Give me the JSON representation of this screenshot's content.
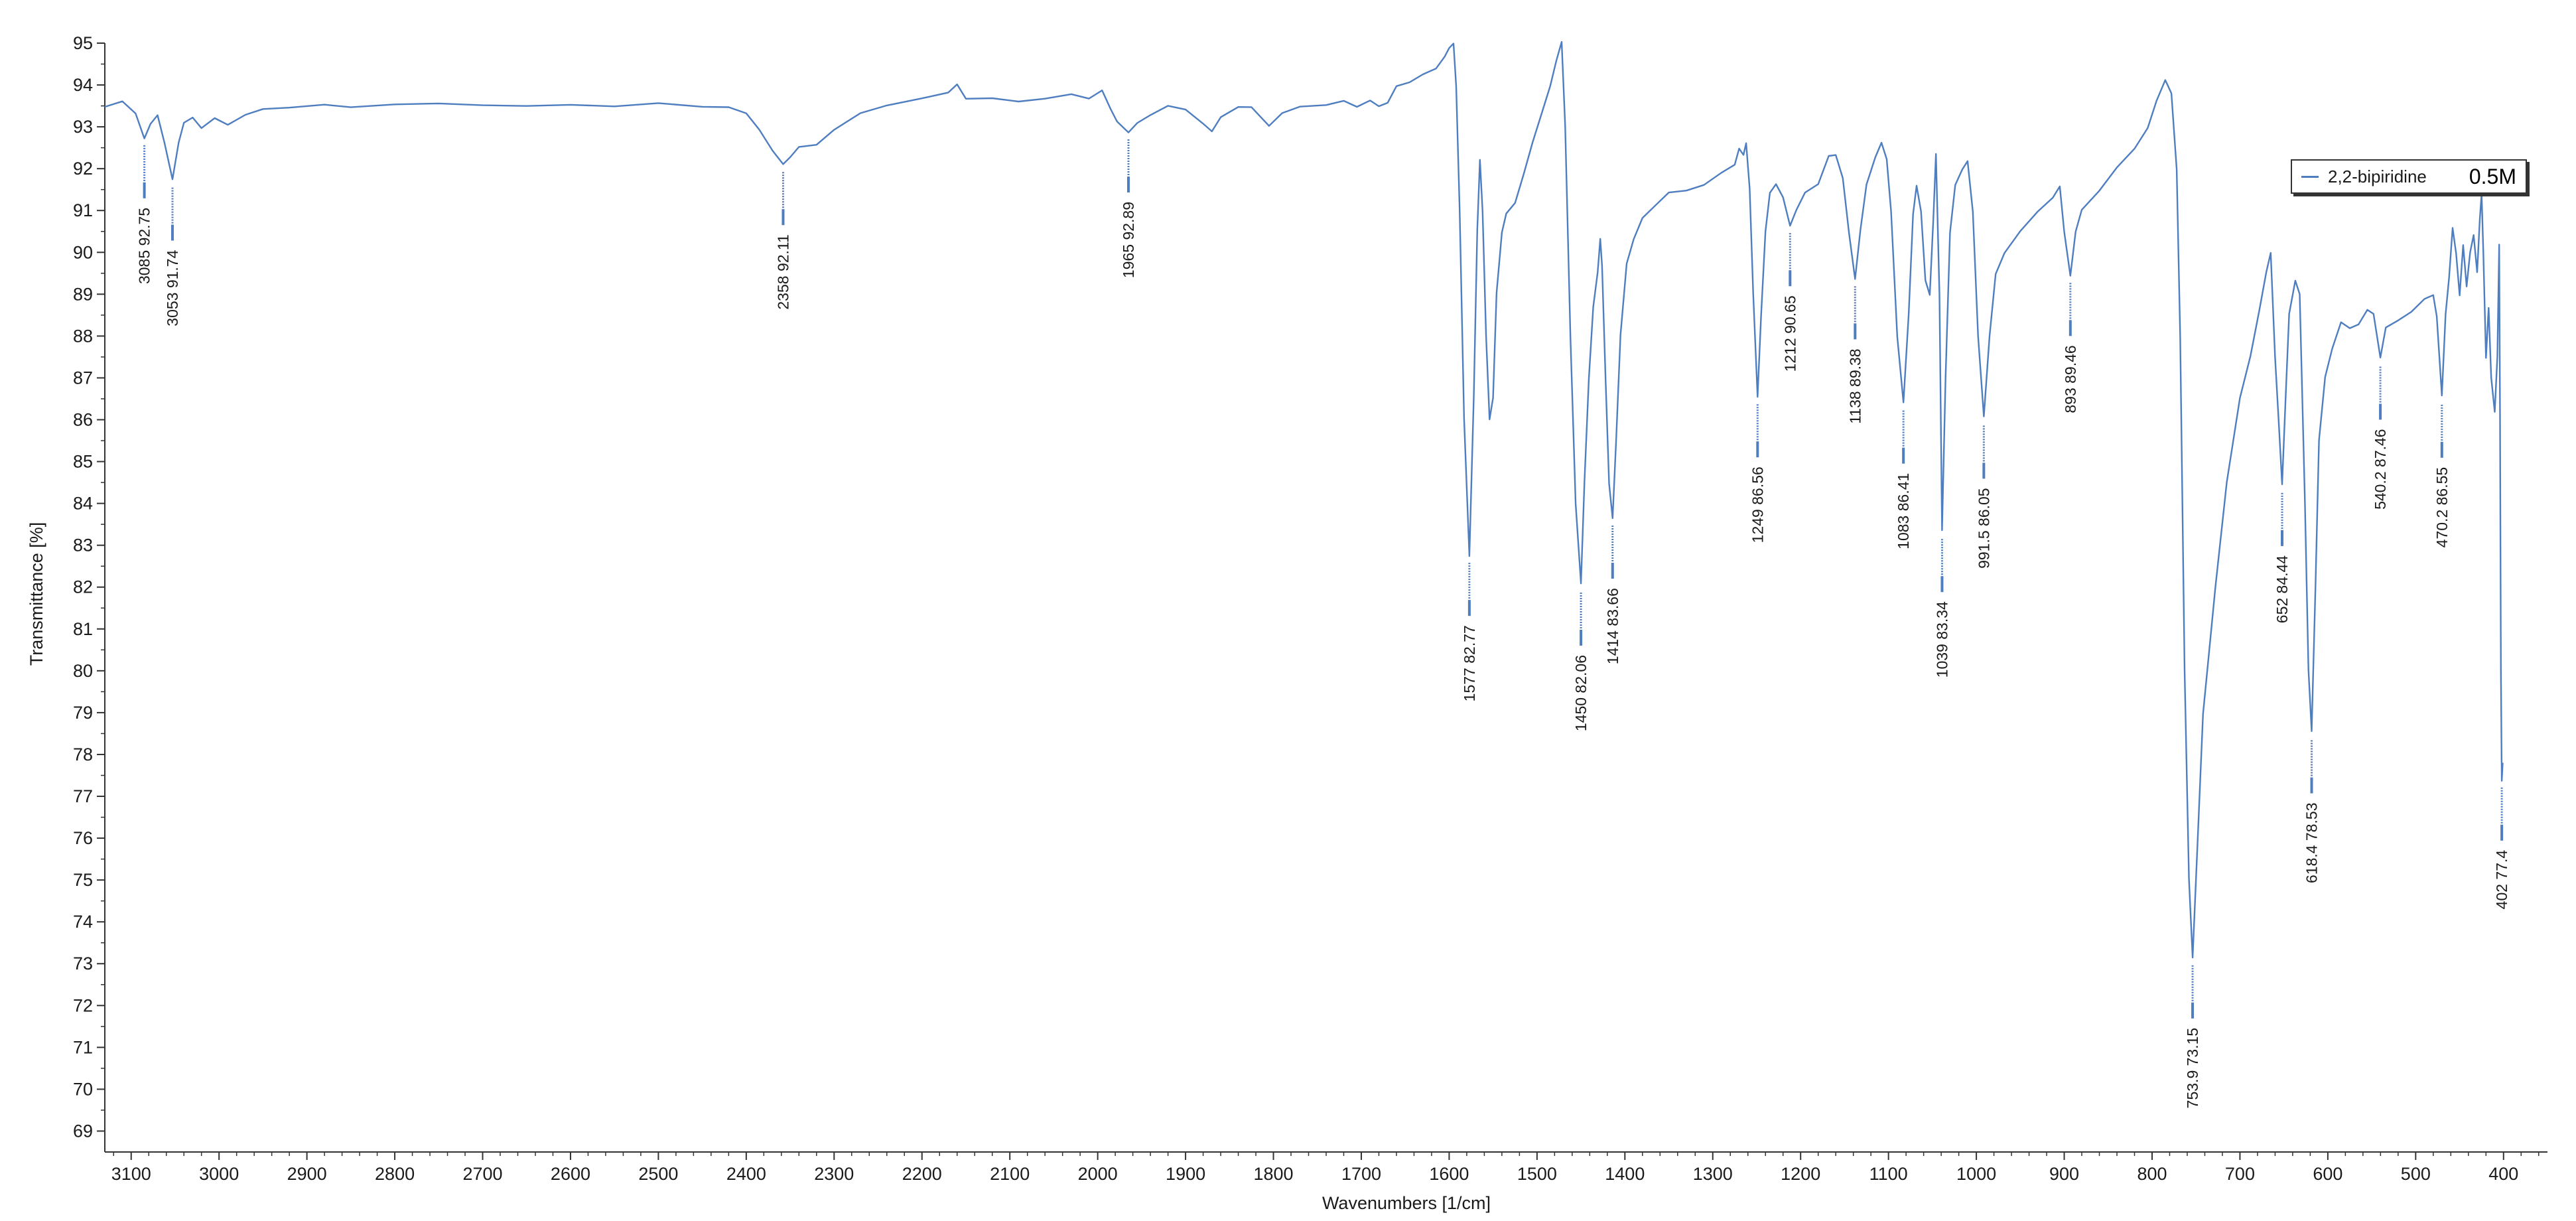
{
  "chart_data": {
    "type": "line",
    "title": "",
    "xlabel": "Wavenumbers [1/cm]",
    "ylabel": "Transmittance [%]",
    "xlim": [
      3130,
      350
    ],
    "ylim": [
      68.5,
      95
    ],
    "x_ticks": [
      "3100",
      "3000",
      "2900",
      "2800",
      "2700",
      "2600",
      "2500",
      "2400",
      "2300",
      "2200",
      "2100",
      "2000",
      "1900",
      "1800",
      "1700",
      "1600",
      "1500",
      "1400",
      "1300",
      "1200",
      "1100",
      "1000",
      "900",
      "800",
      "700",
      "600",
      "500",
      "400"
    ],
    "y_ticks": [
      "95",
      "94",
      "93",
      "92",
      "91",
      "90",
      "89",
      "88",
      "87",
      "86",
      "85",
      "84",
      "83",
      "82",
      "81",
      "80",
      "79",
      "78",
      "77",
      "76",
      "75",
      "74",
      "73",
      "72",
      "71",
      "70",
      "69"
    ],
    "grid": false,
    "legend_position": "top-right",
    "series": [
      {
        "name": "2,2-bipiridine",
        "color": "#4f7ec0",
        "points": [
          [
            3130,
            93.5
          ],
          [
            3110,
            93.6
          ],
          [
            3095,
            93.3
          ],
          [
            3085,
            92.75
          ],
          [
            3078,
            93.1
          ],
          [
            3070,
            93.3
          ],
          [
            3062,
            92.6
          ],
          [
            3053,
            91.74
          ],
          [
            3046,
            92.6
          ],
          [
            3040,
            93.1
          ],
          [
            3030,
            93.25
          ],
          [
            3020,
            92.95
          ],
          [
            3005,
            93.2
          ],
          [
            2990,
            93.05
          ],
          [
            2970,
            93.3
          ],
          [
            2950,
            93.4
          ],
          [
            2920,
            93.45
          ],
          [
            2880,
            93.5
          ],
          [
            2850,
            93.45
          ],
          [
            2800,
            93.55
          ],
          [
            2750,
            93.55
          ],
          [
            2700,
            93.52
          ],
          [
            2650,
            93.5
          ],
          [
            2600,
            93.52
          ],
          [
            2550,
            93.5
          ],
          [
            2500,
            93.55
          ],
          [
            2450,
            93.5
          ],
          [
            2420,
            93.5
          ],
          [
            2400,
            93.3
          ],
          [
            2385,
            92.9
          ],
          [
            2370,
            92.4
          ],
          [
            2358,
            92.11
          ],
          [
            2350,
            92.3
          ],
          [
            2340,
            92.5
          ],
          [
            2320,
            92.6
          ],
          [
            2300,
            92.9
          ],
          [
            2270,
            93.3
          ],
          [
            2240,
            93.5
          ],
          [
            2200,
            93.65
          ],
          [
            2170,
            93.8
          ],
          [
            2160,
            94.0
          ],
          [
            2150,
            93.7
          ],
          [
            2120,
            93.7
          ],
          [
            2090,
            93.6
          ],
          [
            2060,
            93.65
          ],
          [
            2030,
            93.75
          ],
          [
            2010,
            93.7
          ],
          [
            1995,
            93.9
          ],
          [
            1985,
            93.4
          ],
          [
            1978,
            93.1
          ],
          [
            1965,
            92.89
          ],
          [
            1955,
            93.1
          ],
          [
            1940,
            93.3
          ],
          [
            1920,
            93.5
          ],
          [
            1900,
            93.4
          ],
          [
            1880,
            93.1
          ],
          [
            1870,
            92.9
          ],
          [
            1860,
            93.2
          ],
          [
            1840,
            93.5
          ],
          [
            1825,
            93.5
          ],
          [
            1805,
            93.0
          ],
          [
            1790,
            93.3
          ],
          [
            1770,
            93.5
          ],
          [
            1740,
            93.55
          ],
          [
            1720,
            93.6
          ],
          [
            1705,
            93.45
          ],
          [
            1690,
            93.6
          ],
          [
            1680,
            93.5
          ],
          [
            1670,
            93.6
          ],
          [
            1660,
            93.95
          ],
          [
            1645,
            94.05
          ],
          [
            1630,
            94.25
          ],
          [
            1615,
            94.4
          ],
          [
            1605,
            94.65
          ],
          [
            1600,
            94.9
          ],
          [
            1595,
            95.0
          ],
          [
            1592,
            94.0
          ],
          [
            1588,
            91.0
          ],
          [
            1583,
            86.0
          ],
          [
            1577,
            82.77
          ],
          [
            1572,
            86.5
          ],
          [
            1568,
            90.5
          ],
          [
            1565,
            92.2
          ],
          [
            1562,
            91.0
          ],
          [
            1558,
            88.0
          ],
          [
            1554,
            86.0
          ],
          [
            1550,
            86.5
          ],
          [
            1546,
            89.0
          ],
          [
            1540,
            90.5
          ],
          [
            1535,
            90.9
          ],
          [
            1525,
            91.2
          ],
          [
            1515,
            91.9
          ],
          [
            1505,
            92.6
          ],
          [
            1495,
            93.3
          ],
          [
            1485,
            94.0
          ],
          [
            1478,
            94.6
          ],
          [
            1472,
            95.0
          ],
          [
            1468,
            93.0
          ],
          [
            1462,
            88.0
          ],
          [
            1456,
            84.0
          ],
          [
            1450,
            82.06
          ],
          [
            1446,
            84.5
          ],
          [
            1441,
            87.0
          ],
          [
            1436,
            88.7
          ],
          [
            1431,
            89.5
          ],
          [
            1428,
            90.3
          ],
          [
            1426,
            89.7
          ],
          [
            1422,
            87.0
          ],
          [
            1418,
            84.5
          ],
          [
            1414,
            83.66
          ],
          [
            1410,
            85.5
          ],
          [
            1405,
            88.0
          ],
          [
            1398,
            89.7
          ],
          [
            1390,
            90.3
          ],
          [
            1380,
            90.8
          ],
          [
            1365,
            91.1
          ],
          [
            1350,
            91.4
          ],
          [
            1330,
            91.5
          ],
          [
            1310,
            91.6
          ],
          [
            1290,
            91.9
          ],
          [
            1275,
            92.1
          ],
          [
            1270,
            92.5
          ],
          [
            1265,
            92.3
          ],
          [
            1262,
            92.6
          ],
          [
            1258,
            91.5
          ],
          [
            1254,
            89.0
          ],
          [
            1249,
            86.56
          ],
          [
            1245,
            88.5
          ],
          [
            1240,
            90.5
          ],
          [
            1235,
            91.4
          ],
          [
            1228,
            91.6
          ],
          [
            1220,
            91.3
          ],
          [
            1212,
            90.65
          ],
          [
            1205,
            91.0
          ],
          [
            1195,
            91.4
          ],
          [
            1180,
            91.6
          ],
          [
            1168,
            92.3
          ],
          [
            1160,
            92.35
          ],
          [
            1152,
            91.8
          ],
          [
            1145,
            90.5
          ],
          [
            1138,
            89.38
          ],
          [
            1132,
            90.5
          ],
          [
            1125,
            91.6
          ],
          [
            1115,
            92.3
          ],
          [
            1108,
            92.65
          ],
          [
            1102,
            92.2
          ],
          [
            1097,
            91.0
          ],
          [
            1090,
            88.0
          ],
          [
            1083,
            86.41
          ],
          [
            1077,
            88.5
          ],
          [
            1072,
            90.9
          ],
          [
            1068,
            91.6
          ],
          [
            1063,
            91.0
          ],
          [
            1058,
            89.3
          ],
          [
            1053,
            89.0
          ],
          [
            1049,
            90.8
          ],
          [
            1046,
            92.35
          ],
          [
            1042,
            89.0
          ],
          [
            1039,
            83.34
          ],
          [
            1035,
            87.0
          ],
          [
            1030,
            90.5
          ],
          [
            1024,
            91.6
          ],
          [
            1016,
            92.0
          ],
          [
            1010,
            92.15
          ],
          [
            1004,
            91.0
          ],
          [
            998,
            88.0
          ],
          [
            991.5,
            86.05
          ],
          [
            985,
            88.0
          ],
          [
            978,
            89.5
          ],
          [
            968,
            90.0
          ],
          [
            950,
            90.5
          ],
          [
            930,
            91.0
          ],
          [
            913,
            91.3
          ],
          [
            905,
            91.6
          ],
          [
            900,
            90.5
          ],
          [
            893,
            89.46
          ],
          [
            887,
            90.5
          ],
          [
            880,
            91.0
          ],
          [
            860,
            91.5
          ],
          [
            840,
            92.0
          ],
          [
            820,
            92.5
          ],
          [
            805,
            93.0
          ],
          [
            795,
            93.6
          ],
          [
            785,
            94.1
          ],
          [
            778,
            93.8
          ],
          [
            772,
            92.0
          ],
          [
            768,
            88.0
          ],
          [
            763,
            80.0
          ],
          [
            758,
            75.0
          ],
          [
            753.9,
            73.15
          ],
          [
            748,
            76.0
          ],
          [
            742,
            79.0
          ],
          [
            735,
            80.5
          ],
          [
            728,
            82.0
          ],
          [
            715,
            84.5
          ],
          [
            700,
            86.5
          ],
          [
            688,
            87.5
          ],
          [
            678,
            88.6
          ],
          [
            670,
            89.5
          ],
          [
            665,
            90.0
          ],
          [
            660,
            87.5
          ],
          [
            656,
            86.0
          ],
          [
            652,
            84.44
          ],
          [
            648,
            86.5
          ],
          [
            644,
            88.5
          ],
          [
            637,
            89.3
          ],
          [
            632,
            89.0
          ],
          [
            626,
            84.0
          ],
          [
            622,
            80.0
          ],
          [
            618.4,
            78.53
          ],
          [
            614,
            82.0
          ],
          [
            610,
            85.5
          ],
          [
            603,
            87.0
          ],
          [
            595,
            87.7
          ],
          [
            585,
            88.3
          ],
          [
            575,
            88.2
          ],
          [
            565,
            88.3
          ],
          [
            555,
            88.6
          ],
          [
            548,
            88.5
          ],
          [
            540.2,
            87.46
          ],
          [
            534,
            88.2
          ],
          [
            520,
            88.4
          ],
          [
            505,
            88.6
          ],
          [
            490,
            88.9
          ],
          [
            480,
            89.0
          ],
          [
            476,
            88.5
          ],
          [
            470.2,
            86.55
          ],
          [
            466,
            88.5
          ],
          [
            462,
            89.4
          ],
          [
            458,
            90.6
          ],
          [
            454,
            90.0
          ],
          [
            450,
            89.0
          ],
          [
            446,
            90.2
          ],
          [
            442,
            89.2
          ],
          [
            438,
            90.0
          ],
          [
            434,
            90.4
          ],
          [
            430,
            89.5
          ],
          [
            427,
            90.8
          ],
          [
            425,
            91.4
          ],
          [
            423,
            90.0
          ],
          [
            420,
            87.5
          ],
          [
            417,
            88.7
          ],
          [
            414,
            87.0
          ],
          [
            410,
            86.2
          ],
          [
            407,
            87.5
          ],
          [
            405,
            90.2
          ],
          [
            404,
            86.0
          ],
          [
            403,
            80.0
          ],
          [
            402,
            77.4
          ],
          [
            401,
            77.8
          ]
        ]
      }
    ],
    "peak_annotations": [
      {
        "x": 3085,
        "y": 92.75,
        "label": "3085  92.75"
      },
      {
        "x": 3053,
        "y": 91.74,
        "label": "3053  91.74"
      },
      {
        "x": 2358,
        "y": 92.11,
        "label": "2358  92.11"
      },
      {
        "x": 1965,
        "y": 92.89,
        "label": "1965  92.89"
      },
      {
        "x": 1577,
        "y": 82.77,
        "label": "1577  82.77"
      },
      {
        "x": 1450,
        "y": 82.06,
        "label": "1450  82.06"
      },
      {
        "x": 1414,
        "y": 83.66,
        "label": "1414  83.66"
      },
      {
        "x": 1249,
        "y": 86.56,
        "label": "1249  86.56"
      },
      {
        "x": 1212,
        "y": 90.65,
        "label": "1212  90.65"
      },
      {
        "x": 1138,
        "y": 89.38,
        "label": "1138  89.38"
      },
      {
        "x": 1083,
        "y": 86.41,
        "label": "1083  86.41"
      },
      {
        "x": 1039,
        "y": 83.34,
        "label": "1039  83.34"
      },
      {
        "x": 991.5,
        "y": 86.05,
        "label": "991.5  86.05"
      },
      {
        "x": 893,
        "y": 89.46,
        "label": "893  89.46"
      },
      {
        "x": 753.9,
        "y": 73.15,
        "label": "753.9  73.15"
      },
      {
        "x": 652,
        "y": 84.44,
        "label": "652  84.44"
      },
      {
        "x": 618.4,
        "y": 78.53,
        "label": "618.4  78.53"
      },
      {
        "x": 540.2,
        "y": 87.46,
        "label": "540.2  87.46"
      },
      {
        "x": 470.2,
        "y": 86.55,
        "label": "470.2  86.55"
      },
      {
        "x": 402,
        "y": 77.4,
        "label": "402  77.4"
      }
    ],
    "legend": {
      "label": "2,2-bipiridine",
      "note": "0.5M"
    }
  }
}
